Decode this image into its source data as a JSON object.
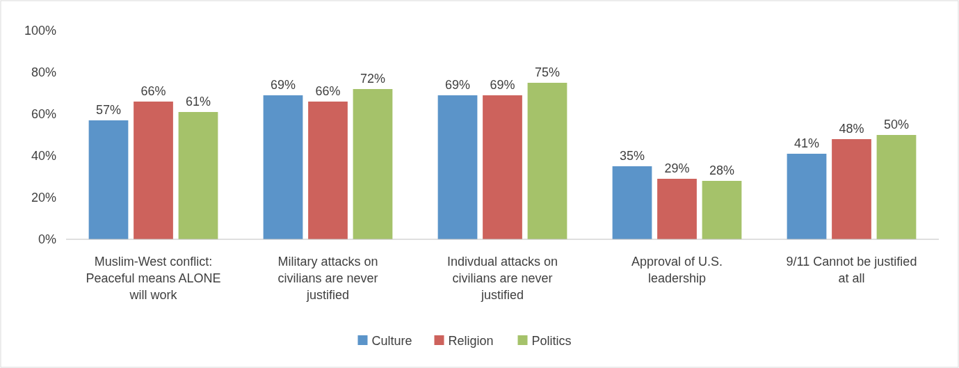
{
  "chart_data": {
    "type": "bar",
    "categories": [
      "Muslim-West conflict: Peaceful means ALONE will work",
      "Military attacks on civilians are never justified",
      "Indivdual attacks on civilians are never justified",
      "Approval of U.S. leadership",
      "9/11 Cannot be justified at all"
    ],
    "series": [
      {
        "name": "Culture",
        "color": "#5b94c9",
        "values": [
          57,
          69,
          69,
          35,
          41
        ],
        "value_labels": [
          "57%",
          "69%",
          "69%",
          "35%",
          "41%"
        ]
      },
      {
        "name": "Religion",
        "color": "#cd625c",
        "values": [
          66,
          66,
          69,
          29,
          48
        ],
        "value_labels": [
          "66%",
          "66%",
          "69%",
          "29%",
          "48%"
        ]
      },
      {
        "name": "Politics",
        "color": "#a5c26a",
        "values": [
          61,
          72,
          75,
          28,
          50
        ],
        "value_labels": [
          "61%",
          "72%",
          "75%",
          "28%",
          "50%"
        ]
      }
    ],
    "ylim": [
      0,
      100
    ],
    "yticks": [
      {
        "value": 0,
        "label": "0%"
      },
      {
        "value": 20,
        "label": "20%"
      },
      {
        "value": 40,
        "label": "40%"
      },
      {
        "value": 60,
        "label": "60%"
      },
      {
        "value": 80,
        "label": "80%"
      },
      {
        "value": 100,
        "label": "100%"
      }
    ],
    "grid": false,
    "legend": "bottom"
  }
}
